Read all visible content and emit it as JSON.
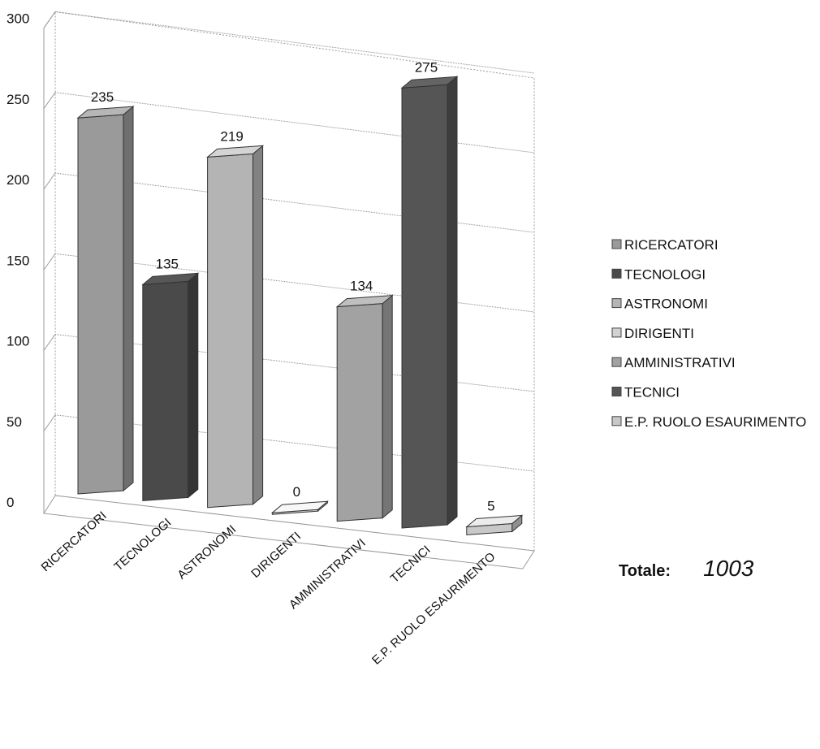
{
  "chart_data": {
    "type": "bar",
    "categories": [
      "RICERCATORI",
      "TECNOLOGI",
      "ASTRONOMI",
      "DIRIGENTI",
      "AMMINISTRATIVI",
      "TECNICI",
      "E.P. RUOLO ESAURIMENTO"
    ],
    "values": [
      235,
      135,
      219,
      0,
      134,
      275,
      5
    ],
    "value_labels": [
      "235",
      "135",
      "219",
      "0",
      "134",
      "275",
      "5"
    ],
    "ylim": [
      0,
      300
    ],
    "yticks": [
      0,
      50,
      100,
      150,
      200,
      250,
      300
    ],
    "ytick_labels": [
      "0",
      "50",
      "100",
      "150",
      "200",
      "250",
      "300"
    ],
    "grid": true,
    "style": "3d-column",
    "legend_position": "right",
    "colors": [
      "#9a9a9a",
      "#4a4a4a",
      "#b4b4b4",
      "#d2d2d2",
      "#a2a2a2",
      "#555555",
      "#c8c8c8"
    ]
  },
  "legend": {
    "items": [
      "RICERCATORI",
      "TECNOLOGI",
      "ASTRONOMI",
      "DIRIGENTI",
      "AMMINISTRATIVI",
      "TECNICI",
      "E.P. RUOLO ESAURIMENTO"
    ]
  },
  "total": {
    "label": "Totale:",
    "value": "1003"
  }
}
